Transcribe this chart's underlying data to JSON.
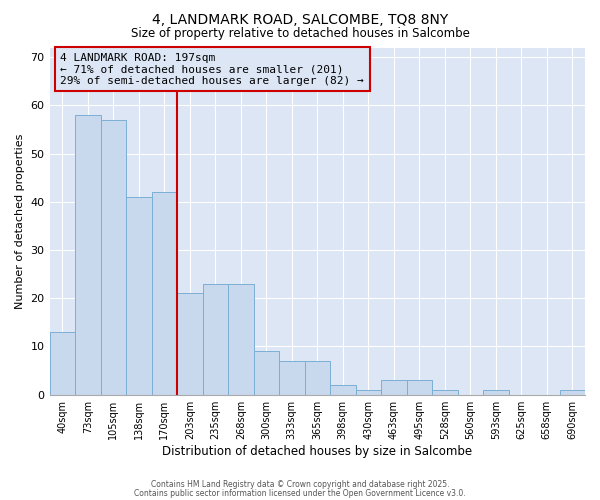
{
  "title_line1": "4, LANDMARK ROAD, SALCOMBE, TQ8 8NY",
  "title_line2": "Size of property relative to detached houses in Salcombe",
  "xlabel": "Distribution of detached houses by size in Salcombe",
  "ylabel": "Number of detached properties",
  "categories": [
    "40sqm",
    "73sqm",
    "105sqm",
    "138sqm",
    "170sqm",
    "203sqm",
    "235sqm",
    "268sqm",
    "300sqm",
    "333sqm",
    "365sqm",
    "398sqm",
    "430sqm",
    "463sqm",
    "495sqm",
    "528sqm",
    "560sqm",
    "593sqm",
    "625sqm",
    "658sqm",
    "690sqm"
  ],
  "values": [
    13,
    58,
    57,
    41,
    42,
    21,
    23,
    23,
    9,
    7,
    7,
    2,
    1,
    3,
    3,
    1,
    0,
    1,
    0,
    0,
    1
  ],
  "bar_color": "#c8d9ee",
  "bar_edge_color": "#7bafd4",
  "ylim": [
    0,
    72
  ],
  "yticks": [
    0,
    10,
    20,
    30,
    40,
    50,
    60,
    70
  ],
  "property_label": "4 LANDMARK ROAD: 197sqm",
  "annotation_line1": "← 71% of detached houses are smaller (201)",
  "annotation_line2": "29% of semi-detached houses are larger (82) →",
  "vline_color": "#cc0000",
  "annotation_box_edge_color": "#cc0000",
  "fig_bg_color": "#ffffff",
  "plot_bg_color": "#dce6f5",
  "grid_color": "#ffffff",
  "footer_line1": "Contains HM Land Registry data © Crown copyright and database right 2025.",
  "footer_line2": "Contains public sector information licensed under the Open Government Licence v3.0."
}
